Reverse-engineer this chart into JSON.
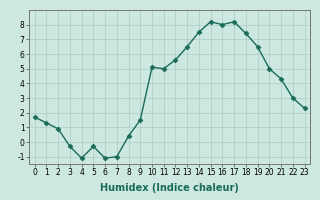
{
  "x": [
    0,
    1,
    2,
    3,
    4,
    5,
    6,
    7,
    8,
    9,
    10,
    11,
    12,
    13,
    14,
    15,
    16,
    17,
    18,
    19,
    20,
    21,
    22,
    23
  ],
  "y": [
    1.7,
    1.3,
    0.9,
    -0.3,
    -1.1,
    -0.3,
    -1.1,
    -1.0,
    0.4,
    1.5,
    5.1,
    5.0,
    5.6,
    6.5,
    7.5,
    8.2,
    8.0,
    8.2,
    7.4,
    6.5,
    5.0,
    4.3,
    3.0,
    2.3
  ],
  "line_color": "#1a6b5a",
  "marker": "D",
  "markersize": 2.5,
  "linewidth": 1.0,
  "xlabel": "Humidex (Indice chaleur)",
  "xlabel_fontsize": 7.0,
  "xlabel_weight": "bold",
  "bg_color": "#cce8e0",
  "grid_color": "#aaccc4",
  "xlim": [
    -0.5,
    23.5
  ],
  "ylim": [
    -1.5,
    9.0
  ],
  "yticks": [
    -1,
    0,
    1,
    2,
    3,
    4,
    5,
    6,
    7,
    8
  ],
  "xtick_labels": [
    "0",
    "1",
    "2",
    "3",
    "4",
    "5",
    "6",
    "7",
    "8",
    "9",
    "10",
    "11",
    "12",
    "13",
    "14",
    "15",
    "16",
    "17",
    "18",
    "19",
    "20",
    "21",
    "22",
    "23"
  ],
  "tick_fontsize": 5.5,
  "spine_color": "#666666"
}
